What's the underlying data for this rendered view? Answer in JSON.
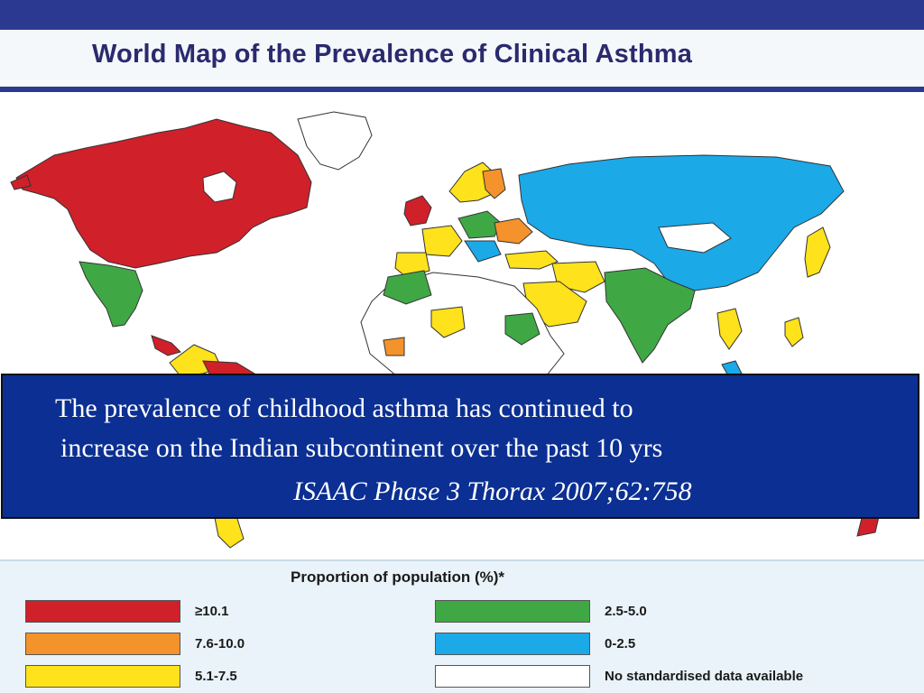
{
  "slide": {
    "title": "World Map of the Prevalence of Clinical Asthma"
  },
  "overlay": {
    "line1": "The prevalence of childhood asthma has continued to",
    "line2": "increase on the Indian subcontinent over the past 10 yrs",
    "citation": "ISAAC Phase 3 Thorax 2007;62:758"
  },
  "legend": {
    "title": "Proportion of population (%)*",
    "items": [
      {
        "label": "≥10.1",
        "color": "#d0202a"
      },
      {
        "label": "7.6-10.0",
        "color": "#f4922b"
      },
      {
        "label": "5.1-7.5",
        "color": "#fde21c"
      },
      {
        "label": "2.5-5.0",
        "color": "#3fa845"
      },
      {
        "label": "0-2.5",
        "color": "#1ba9e8"
      },
      {
        "label": "No standardised data available",
        "color": "#ffffff"
      }
    ]
  }
}
